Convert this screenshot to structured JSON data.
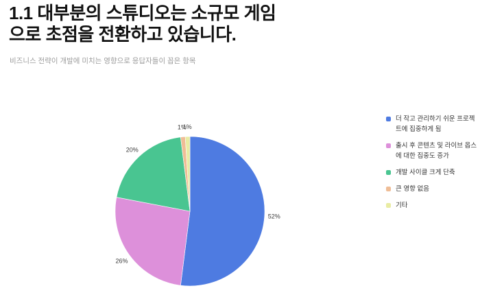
{
  "chart_data": {
    "type": "pie",
    "title": "1.1 대부분의 스튜디오는 소규모 게임으로 초점을 전환하고 있습니다.",
    "title_lines": [
      "1.1 대부분의 스튜디오는 소규모 게임",
      "으로 초점을 전환하고 있습니다."
    ],
    "subtitle": "비즈니스 전략이 개발에 미치는 영향으로 응답자들이 꼽은 항목",
    "labels": [
      "더 작고 관리하기 쉬운 프로젝트에 집중하게 됨",
      "출시 후 콘텐츠 및 라이브 옵스에 대한 집중도 증가",
      "개발 사이클 크게 단축",
      "큰 영향 없음",
      "기타"
    ],
    "values": [
      52,
      26,
      20,
      1,
      1
    ],
    "value_labels": [
      "52%",
      "26%",
      "20%",
      "1%",
      "1%"
    ],
    "unit": "%",
    "colors": [
      "#4E7BE1",
      "#DD90DA",
      "#49C591",
      "#EFBD96",
      "#E9ECA3"
    ],
    "slice_label_color": "#3d3d3d",
    "direction": "clockwise",
    "start_angle_deg": 0,
    "legend_position": "right",
    "grid": false
  }
}
